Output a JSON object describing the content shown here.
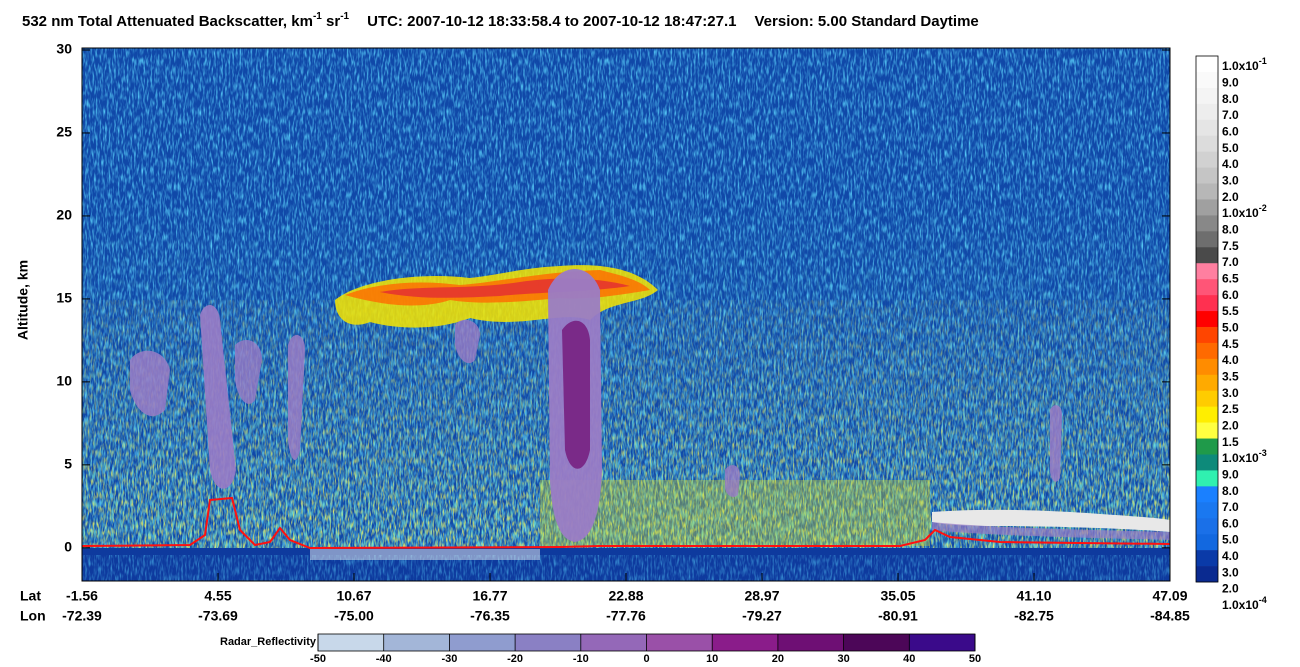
{
  "chart_data": {
    "type": "heatmap",
    "title": {
      "main": "532 nm Total Attenuated Backscatter, km",
      "main_sup": "-1",
      "unit2": " sr",
      "unit2_sup": "-1",
      "utc": "UTC:  2007-10-12 18:33:58.4  to  2007-10-12 18:47:27.1",
      "version": "Version: 5.00  Standard  Daytime"
    },
    "y_label": "Altitude, km",
    "ylim": [
      -2,
      30
    ],
    "yticks": [
      0,
      5,
      10,
      15,
      20,
      25,
      30
    ],
    "x_label_rows": [
      {
        "name": "Lat",
        "labels": [
          "-1.56",
          "4.55",
          "10.67",
          "16.77",
          "22.88",
          "28.97",
          "35.05",
          "41.10",
          "47.09"
        ]
      },
      {
        "name": "Lon",
        "labels": [
          "-72.39",
          "-73.69",
          "-75.00",
          "-76.35",
          "-77.76",
          "-79.27",
          "-80.91",
          "-82.75",
          "-84.85"
        ]
      }
    ],
    "colorbar": {
      "labels": [
        {
          "base": "1.0x10",
          "sup": "-1"
        },
        "9.0",
        "8.0",
        "7.0",
        "6.0",
        "5.0",
        "4.0",
        "3.0",
        "2.0",
        {
          "base": "1.0x10",
          "sup": "-2"
        },
        "8.0",
        "7.5",
        "7.0",
        "6.5",
        "6.0",
        "5.5",
        "5.0",
        "4.5",
        "4.0",
        "3.5",
        "3.0",
        "2.5",
        "2.0",
        "1.5",
        {
          "base": "1.0x10",
          "sup": "-3"
        },
        "9.0",
        "8.0",
        "7.0",
        "6.0",
        "5.0",
        "4.0",
        "3.0",
        "2.0",
        {
          "base": "1.0x10",
          "sup": "-4"
        }
      ],
      "colors": [
        "#ffffff",
        "#fafafa",
        "#f4f4f4",
        "#ededed",
        "#e5e5e5",
        "#dcdcdc",
        "#d1d1d1",
        "#c5c5c5",
        "#b7b7b7",
        "#a0a0a0",
        "#888888",
        "#6e6e6e",
        "#4a4a4a",
        "#ff7fa0",
        "#ff5577",
        "#ff3050",
        "#ff0000",
        "#ff4500",
        "#ff6a00",
        "#ff8c00",
        "#ffaa00",
        "#ffcc00",
        "#ffee00",
        "#ffff40",
        "#1f9a4a",
        "#0d8a7a",
        "#30f0b0",
        "#1a80ff",
        "#1a78f0",
        "#1a70e8",
        "#1268e0",
        "#0a3aa8",
        "#0a2a90"
      ]
    },
    "radar_colorbar": {
      "label": "Radar_Reflectivity",
      "ticks": [
        -50,
        -40,
        -30,
        -20,
        -10,
        0,
        10,
        20,
        30,
        40,
        50
      ],
      "colors": [
        "#c8d8ea",
        "#a3b6d8",
        "#8f9ccf",
        "#8a80c4",
        "#9468b8",
        "#9a50a8",
        "#8a1c8a",
        "#6e0f74",
        "#4c0658",
        "#3a0a8a"
      ]
    }
  }
}
